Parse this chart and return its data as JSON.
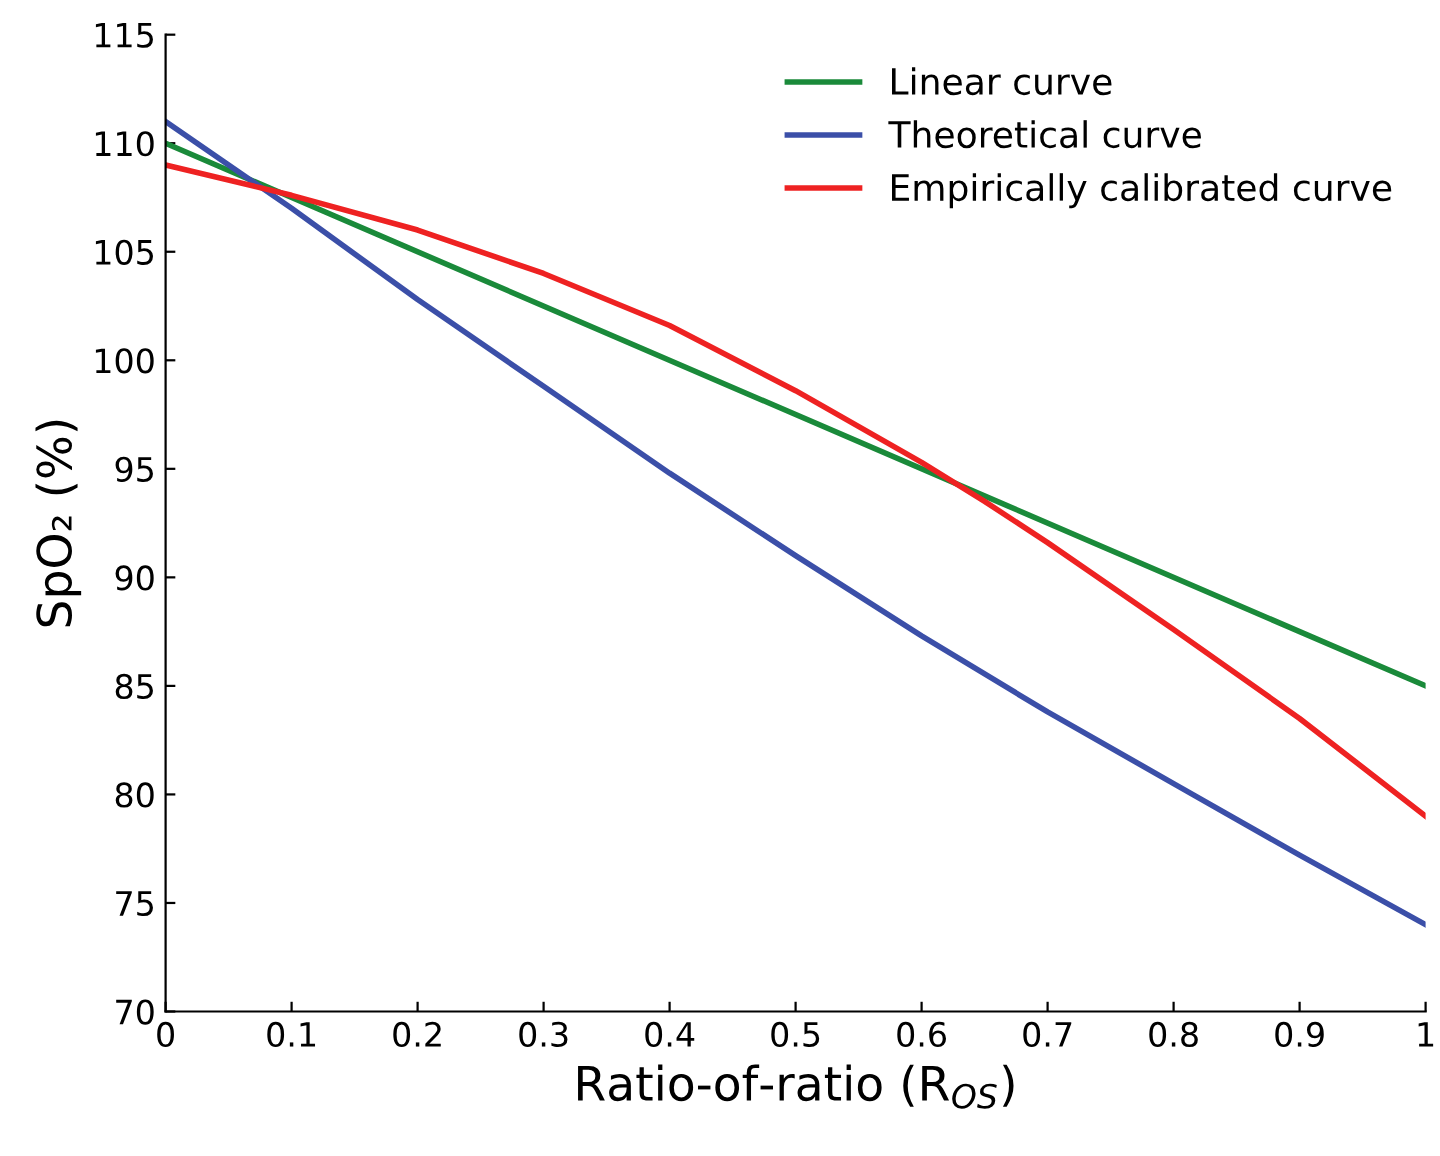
{
  "chart_data": {
    "type": "line",
    "xlabel": "Ratio-of-ratio (R$_{OS}$)",
    "ylabel": "SpO₂ (%)",
    "xlim": [
      0,
      1
    ],
    "ylim": [
      70,
      115
    ],
    "xticks": [
      0,
      0.1,
      0.2,
      0.3,
      0.4,
      0.5,
      0.6,
      0.7,
      0.8,
      0.9,
      1
    ],
    "yticks": [
      70,
      75,
      80,
      85,
      90,
      95,
      100,
      105,
      110,
      115
    ],
    "grid": false,
    "legend": "top right",
    "line_style": "solid",
    "series": [
      {
        "name": "Linear curve",
        "color": "#1a8a3a",
        "x": [
          0,
          1
        ],
        "values": [
          110,
          85
        ]
      },
      {
        "name": "Theoretical curve",
        "color": "#3b4fa8",
        "x": [
          0,
          0.1,
          0.2,
          0.3,
          0.4,
          0.5,
          0.6,
          0.7,
          0.8,
          0.9,
          1
        ],
        "values": [
          111,
          107,
          102.8,
          98.8,
          94.8,
          91,
          87.3,
          83.8,
          80.5,
          77.2,
          74
        ]
      },
      {
        "name": "Empirically calibrated curve",
        "color": "#ee2222",
        "x": [
          0,
          0.1,
          0.2,
          0.3,
          0.4,
          0.5,
          0.6,
          0.65,
          0.7,
          0.8,
          0.9,
          1
        ],
        "values": [
          109,
          107.6,
          106,
          104,
          101.6,
          98.6,
          95.3,
          93.5,
          91.6,
          87.6,
          83.5,
          79
        ]
      }
    ]
  }
}
